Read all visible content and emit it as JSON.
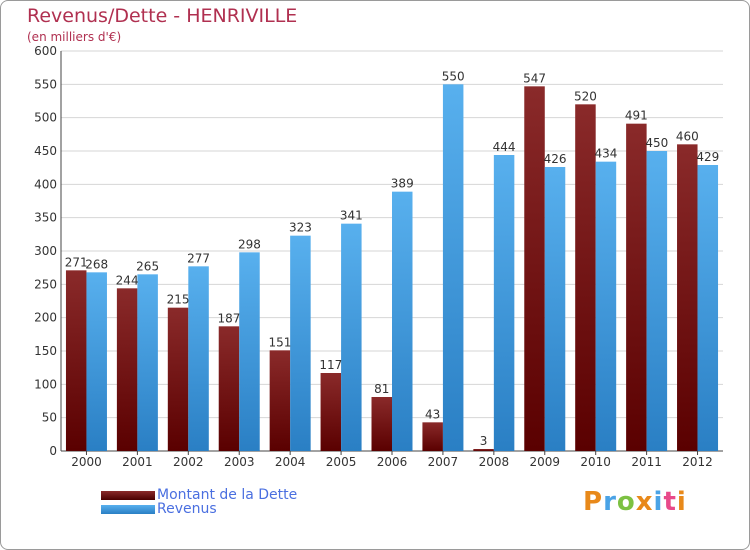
{
  "colors": {
    "dette": "#7a1c1c",
    "revenus": "#3f9de0",
    "title": "#b03050",
    "legend_text": "#4a6fe0"
  },
  "legend": [
    {
      "label": "Montant de la Dette",
      "color": "#6b0d0d"
    },
    {
      "label": "Revenus",
      "color": "#4aa3e6"
    }
  ],
  "brand": {
    "text": "Proxiti"
  },
  "chart_data": {
    "type": "bar",
    "title": "Revenus/Dette - HENRIVILLE",
    "subtitle": "(en milliers d'€)",
    "xlabel": "",
    "ylabel": "",
    "categories": [
      "2000",
      "2001",
      "2002",
      "2003",
      "2004",
      "2005",
      "2006",
      "2007",
      "2008",
      "2009",
      "2010",
      "2011",
      "2012"
    ],
    "series": [
      {
        "name": "Montant de la Dette",
        "values": [
          271,
          244,
          215,
          187,
          151,
          117,
          81,
          43,
          3,
          547,
          520,
          491,
          460
        ]
      },
      {
        "name": "Revenus",
        "values": [
          268,
          265,
          277,
          298,
          323,
          341,
          389,
          550,
          444,
          426,
          434,
          450,
          429
        ]
      }
    ],
    "ylim": [
      0,
      600
    ],
    "yticks": [
      0,
      50,
      100,
      150,
      200,
      250,
      300,
      350,
      400,
      450,
      500,
      550,
      600
    ],
    "grid": true,
    "legend_position": "bottom-left"
  }
}
